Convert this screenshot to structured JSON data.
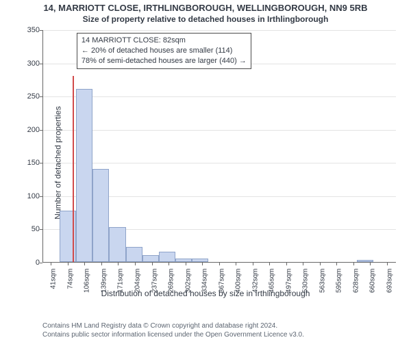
{
  "title_main": "14, MARRIOTT CLOSE, IRTHLINGBOROUGH, WELLINGBOROUGH, NN9 5RB",
  "title_sub": "Size of property relative to detached houses in Irthlingborough",
  "ylabel": "Number of detached properties",
  "xlabel": "Distribution of detached houses by size in Irthlingborough",
  "chart": {
    "type": "histogram",
    "x_min": 25,
    "x_max": 710,
    "y_min": 0,
    "y_max": 350,
    "y_ticks": [
      0,
      50,
      100,
      150,
      200,
      250,
      300,
      350
    ],
    "x_ticks": [
      41,
      74,
      106,
      139,
      171,
      204,
      237,
      269,
      302,
      334,
      367,
      400,
      432,
      465,
      497,
      530,
      563,
      595,
      628,
      660,
      693
    ],
    "x_tick_suffix": "sqm",
    "bin_width": 32,
    "bar_fill": "#c9d6ef",
    "bar_stroke": "#8ea3c9",
    "grid_color": "#666666",
    "tick_fontsize": 11,
    "label_fontsize": 12,
    "bars": [
      {
        "x0": 25,
        "count": 0
      },
      {
        "x0": 57,
        "count": 77
      },
      {
        "x0": 89,
        "count": 260
      },
      {
        "x0": 121,
        "count": 140
      },
      {
        "x0": 153,
        "count": 53
      },
      {
        "x0": 185,
        "count": 23
      },
      {
        "x0": 217,
        "count": 10
      },
      {
        "x0": 249,
        "count": 15
      },
      {
        "x0": 281,
        "count": 5
      },
      {
        "x0": 313,
        "count": 5
      },
      {
        "x0": 345,
        "count": 0
      },
      {
        "x0": 377,
        "count": 0
      },
      {
        "x0": 409,
        "count": 0
      },
      {
        "x0": 441,
        "count": 0
      },
      {
        "x0": 473,
        "count": 0
      },
      {
        "x0": 505,
        "count": 0
      },
      {
        "x0": 537,
        "count": 0
      },
      {
        "x0": 569,
        "count": 0
      },
      {
        "x0": 601,
        "count": 0
      },
      {
        "x0": 633,
        "count": 3
      },
      {
        "x0": 665,
        "count": 0
      }
    ],
    "marker": {
      "x": 82,
      "color": "#d14a4a",
      "height_value": 280
    },
    "annotation": {
      "line1": "14 MARRIOTT CLOSE: 82sqm",
      "line2": "← 20% of detached houses are smaller (114)",
      "line3": "78% of semi-detached houses are larger (440) →"
    }
  },
  "credits": {
    "line1": "Contains HM Land Registry data © Crown copyright and database right 2024.",
    "line2": "Contains public sector information licensed under the Open Government Licence v3.0."
  }
}
